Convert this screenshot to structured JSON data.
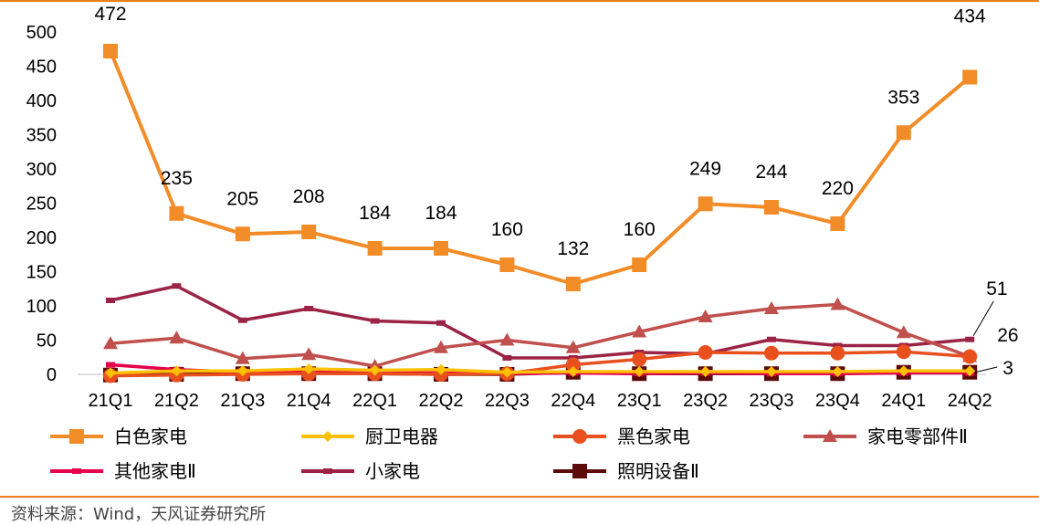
{
  "chart_data": {
    "type": "line",
    "title": "",
    "xlabel": "",
    "ylabel": "",
    "ylim": [
      0,
      500
    ],
    "yticks": [
      "0",
      "50",
      "100",
      "150",
      "200",
      "250",
      "300",
      "350",
      "400",
      "450",
      "500"
    ],
    "grid": false,
    "legend_position": "bottom",
    "categories": [
      "21Q1",
      "21Q2",
      "21Q3",
      "21Q4",
      "22Q1",
      "22Q2",
      "22Q3",
      "22Q4",
      "23Q1",
      "23Q2",
      "23Q3",
      "23Q4",
      "24Q1",
      "24Q2"
    ],
    "series": [
      {
        "name": "白色家电",
        "color": "#f28c28",
        "marker": "square",
        "values": [
          472,
          235,
          205,
          208,
          184,
          184,
          160,
          132,
          160,
          249,
          244,
          220,
          353,
          434
        ]
      },
      {
        "name": "厨卫电器",
        "color": "#ffc000",
        "marker": "diamond",
        "values": [
          2,
          5,
          5,
          8,
          6,
          7,
          3,
          4,
          4,
          4,
          4,
          4,
          5,
          5
        ]
      },
      {
        "name": "黑色家电",
        "color": "#e8501e",
        "marker": "circle",
        "values": [
          -2,
          -1,
          0,
          1,
          1,
          0,
          1,
          14,
          22,
          32,
          31,
          31,
          33,
          26
        ]
      },
      {
        "name": "家电零部件Ⅱ",
        "color": "#c0504d",
        "marker": "triangle",
        "values": [
          45,
          53,
          23,
          29,
          12,
          39,
          50,
          39,
          62,
          84,
          96,
          102,
          61,
          26
        ]
      },
      {
        "name": "其他家电Ⅱ",
        "color": "#e6004c",
        "marker": "dash",
        "values": [
          14,
          7,
          3,
          3,
          3,
          2,
          1,
          2,
          1,
          2,
          1,
          1,
          2,
          2
        ]
      },
      {
        "name": "小家电",
        "color": "#9b2345",
        "marker": "dash",
        "values": [
          108,
          129,
          79,
          96,
          78,
          75,
          24,
          24,
          32,
          30,
          51,
          42,
          42,
          51
        ]
      },
      {
        "name": "照明设备Ⅱ",
        "color": "#5c0a0a",
        "marker": "square",
        "values": [
          -1,
          0,
          1,
          1,
          1,
          0,
          0,
          3,
          1,
          1,
          1,
          1,
          3,
          3
        ]
      }
    ],
    "data_labels": {
      "白色家电": [
        "472",
        "235",
        "205",
        "208",
        "184",
        "184",
        "160",
        "132",
        "160",
        "249",
        "244",
        "220",
        "353",
        "434"
      ],
      "end_labels": [
        "51",
        "26",
        "3"
      ]
    }
  },
  "footer": {
    "source": "资料来源：Wind，天风证券研究所"
  }
}
